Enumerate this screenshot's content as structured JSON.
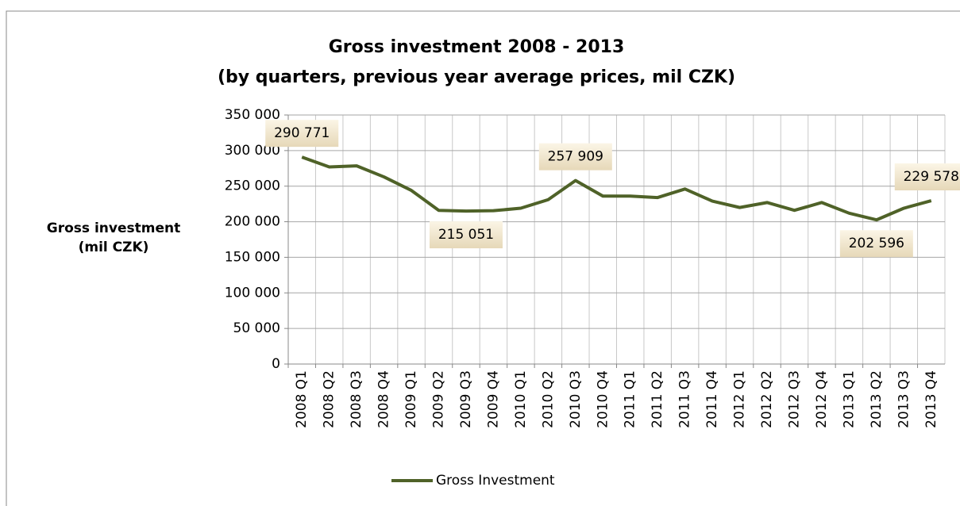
{
  "chart_data": {
    "type": "line",
    "title": "Gross investment 2008 - 2013",
    "subtitle": "(by quarters, previous year average prices, mil CZK)",
    "y_axis_label": "Gross investment (mil CZK)",
    "categories": [
      "2008 Q1",
      "2008 Q2",
      "2008 Q3",
      "2008 Q4",
      "2009 Q1",
      "2009 Q2",
      "2009 Q3",
      "2009 Q4",
      "2010 Q1",
      "2010 Q2",
      "2010 Q3",
      "2010 Q4",
      "2011 Q1",
      "2011 Q2",
      "2011 Q3",
      "2011 Q4",
      "2012 Q1",
      "2012 Q2",
      "2012 Q3",
      "2012 Q4",
      "2013 Q1",
      "2013 Q2",
      "2013 Q3",
      "2013 Q4"
    ],
    "series": [
      {
        "name": "Gross Investment",
        "color": "#4f6228",
        "values": [
          290771,
          277000,
          278500,
          263000,
          244000,
          216000,
          215051,
          215500,
          219000,
          231000,
          257909,
          236000,
          236000,
          234000,
          246000,
          229000,
          220000,
          227000,
          216000,
          227000,
          212000,
          202596,
          219000,
          229578
        ],
        "value_labels": [
          "290 771",
          null,
          null,
          null,
          null,
          null,
          "215 051",
          null,
          null,
          null,
          "257 909",
          null,
          null,
          null,
          null,
          null,
          null,
          null,
          null,
          null,
          null,
          "202 596",
          null,
          "229 578"
        ]
      }
    ],
    "ylim": [
      0,
      350000
    ],
    "yticks": [
      {
        "value": 0,
        "label": "0"
      },
      {
        "value": 50000,
        "label": "50 000"
      },
      {
        "value": 100000,
        "label": "100 000"
      },
      {
        "value": 150000,
        "label": "150 000"
      },
      {
        "value": 200000,
        "label": "200 000"
      },
      {
        "value": 250000,
        "label": "250 000"
      },
      {
        "value": 300000,
        "label": "300 000"
      },
      {
        "value": 350000,
        "label": "350 000"
      }
    ],
    "grid": true,
    "legend": "bottom"
  }
}
